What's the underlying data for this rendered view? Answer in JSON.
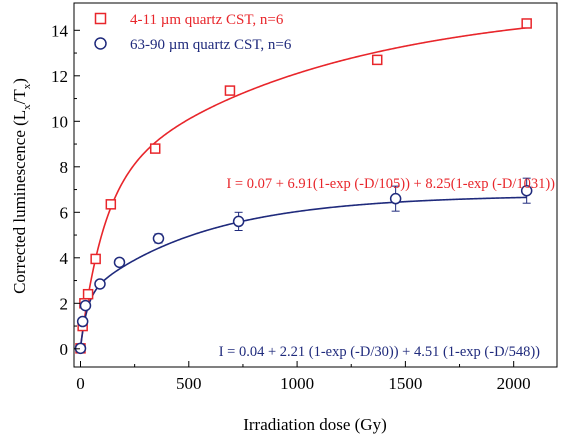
{
  "chart_data": {
    "type": "scatter",
    "xlabel": "Irradiation dose (Gy)",
    "ylabel": {
      "main": "Corrected luminescence (L",
      "sub1": "x",
      "mid": "/T",
      "sub2": "x",
      "end": ")"
    },
    "xlim": [
      -30,
      2200
    ],
    "ylim": [
      -0.8,
      15.2
    ],
    "x_ticks": [
      0,
      500,
      1000,
      1500,
      2000
    ],
    "y_ticks": [
      0,
      2,
      4,
      6,
      8,
      10,
      12,
      14
    ],
    "grid": false,
    "legend_position": "top-left",
    "series": [
      {
        "name": "4-11 µm quartz CST, n=6",
        "marker": "square",
        "color": "#e8262b",
        "x": [
          0,
          10,
          18,
          35,
          70,
          140,
          345,
          690,
          1370,
          2060
        ],
        "y": [
          0.02,
          1.0,
          2.0,
          2.4,
          3.95,
          6.35,
          8.8,
          11.35,
          12.7,
          14.3
        ],
        "fit": {
          "a": 0.07,
          "b": 6.91,
          "t1": 105,
          "c": 8.25,
          "t2": 1031
        },
        "fit_label": "I = 0.07 + 6.91(1-exp (-D/105)) + 8.25(1-exp (-D/1031))"
      },
      {
        "name": "63-90 µm quartz CST, n=6",
        "marker": "circle",
        "color": "#1f2a7c",
        "x": [
          0,
          10,
          23,
          90,
          180,
          360,
          730,
          1455,
          2060
        ],
        "y": [
          0.02,
          1.2,
          1.9,
          2.85,
          3.8,
          4.85,
          5.6,
          6.6,
          6.95
        ],
        "err": [
          0,
          0,
          0,
          0.15,
          0.15,
          0.2,
          0.4,
          0.55,
          0.55
        ],
        "fit": {
          "a": 0.04,
          "b": 2.21,
          "t1": 30,
          "c": 4.51,
          "t2": 548
        },
        "fit_label": "I = 0.04 + 2.21 (1-exp (-D/30)) + 4.51 (1-exp (-D/548))"
      }
    ]
  }
}
